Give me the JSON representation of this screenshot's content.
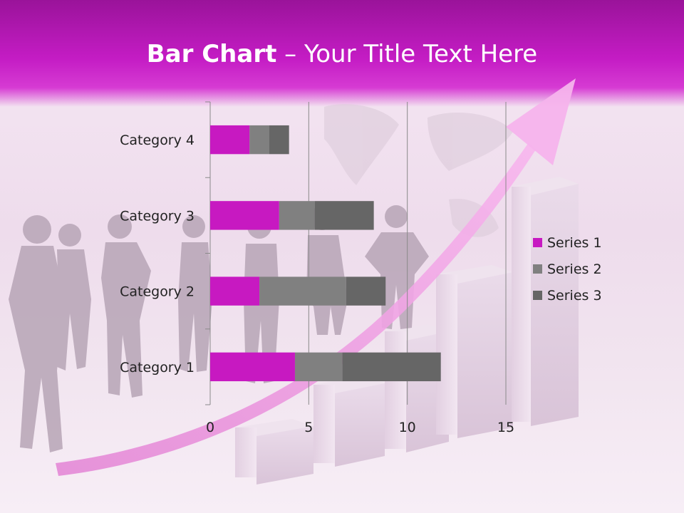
{
  "slide": {
    "title_bold": "Bar Chart",
    "title_rest": " – Your Title Text Here"
  },
  "colors": {
    "header": "#c41cc4",
    "series1": "#c719c1",
    "series2": "#808080",
    "series3": "#666666",
    "arrow": "#f3a6e6"
  },
  "chart_data": {
    "type": "bar",
    "orientation": "horizontal",
    "stacked": true,
    "categories": [
      "Category 1",
      "Category 2",
      "Category 3",
      "Category 4"
    ],
    "series": [
      {
        "name": "Series 1",
        "values": [
          4.3,
          2.5,
          3.5,
          2.0
        ]
      },
      {
        "name": "Series 2",
        "values": [
          2.4,
          4.4,
          1.8,
          1.0
        ]
      },
      {
        "name": "Series 3",
        "values": [
          5.0,
          2.0,
          3.0,
          1.0
        ]
      }
    ],
    "xlim": [
      0,
      15
    ],
    "xticks": [
      "0",
      "5",
      "10",
      "15"
    ],
    "legend": "right",
    "grid": true
  }
}
